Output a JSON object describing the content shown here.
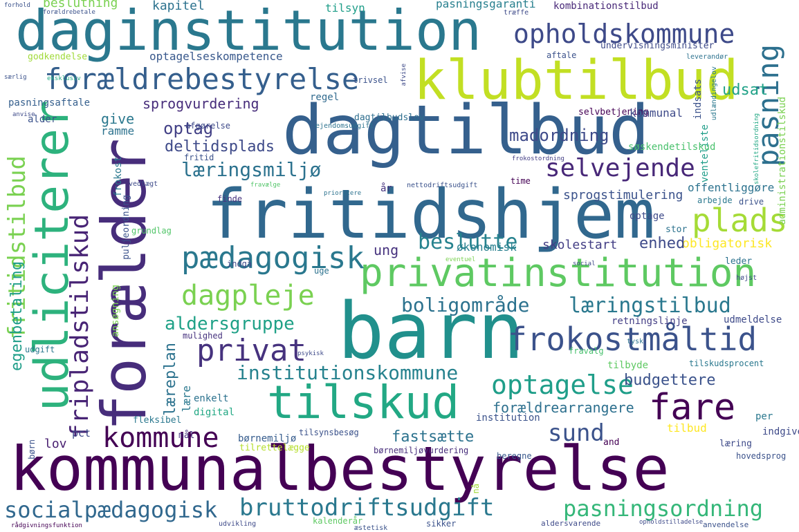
{
  "words": [
    {
      "text": "kommunalbestyrelse",
      "color": "#440154"
    },
    {
      "text": "barn",
      "color": "#21908c"
    },
    {
      "text": "daginstitution",
      "color": "#2a788e"
    },
    {
      "text": "dagtilbud",
      "color": "#35608d"
    },
    {
      "text": "fritidshjem",
      "color": "#31688e"
    },
    {
      "text": "forælder",
      "color": "#472d7b"
    },
    {
      "text": "udliciterer",
      "color": "#2db27d"
    },
    {
      "text": "klubtilbud",
      "color": "#c2df23"
    },
    {
      "text": "tilskud",
      "color": "#22a884"
    },
    {
      "text": "privatinstitution",
      "color": "#5ec962"
    },
    {
      "text": "frokostmåltid",
      "color": "#3b528b"
    },
    {
      "text": "forældrebestyrelse",
      "color": "#355f8d"
    },
    {
      "text": "opholdskommune",
      "color": "#3e4a89"
    },
    {
      "text": "socialpædagogisk",
      "color": "#31688e"
    },
    {
      "text": "bruttodriftsudgift",
      "color": "#2a788e"
    },
    {
      "text": "pasningsordning",
      "color": "#35b779"
    },
    {
      "text": "fare",
      "color": "#440154"
    },
    {
      "text": "pædagogisk",
      "color": "#2a788e"
    },
    {
      "text": "selvejende",
      "color": "#482878"
    },
    {
      "text": "dagpleje",
      "color": "#7ad151"
    },
    {
      "text": "privat",
      "color": "#46327e"
    },
    {
      "text": "pasning",
      "color": "#2d708e"
    },
    {
      "text": "plads",
      "color": "#a5db36"
    },
    {
      "text": "boligområde",
      "color": "#2c728e"
    },
    {
      "text": "læringstilbud",
      "color": "#2a788e"
    },
    {
      "text": "institutionskommune",
      "color": "#26828e"
    },
    {
      "text": "kommune",
      "color": "#440154"
    },
    {
      "text": "optagelse",
      "color": "#1f9e89"
    },
    {
      "text": "fripladstilskud",
      "color": "#482475"
    },
    {
      "text": "fritidstilbud",
      "color": "#7ad151"
    },
    {
      "text": "egenbetaling",
      "color": "#1f9e89"
    },
    {
      "text": "sund",
      "color": "#3b528b"
    },
    {
      "text": "læringsmiljø",
      "color": "#2c728e"
    },
    {
      "text": "beslutte",
      "color": "#26828e"
    },
    {
      "text": "madordning",
      "color": "#3e4a89"
    },
    {
      "text": "aldersgruppe",
      "color": "#1fa187"
    },
    {
      "text": "sprogvurdering",
      "color": "#472d7b"
    },
    {
      "text": "deltidsplads",
      "color": "#3e4a89"
    },
    {
      "text": "optag",
      "color": "#424086"
    },
    {
      "text": "give",
      "color": "#2a788e"
    },
    {
      "text": "ramme",
      "color": "#2c728e"
    },
    {
      "text": "fastsætte",
      "color": "#2c728e"
    },
    {
      "text": "budgettere",
      "color": "#3b528b"
    },
    {
      "text": "forældrearrangere",
      "color": "#2d708e"
    },
    {
      "text": "obligatorisk",
      "color": "#fde725"
    },
    {
      "text": "enhed",
      "color": "#3e4a89"
    },
    {
      "text": "skolestart",
      "color": "#433e85"
    },
    {
      "text": "ung",
      "color": "#46327e"
    },
    {
      "text": "økonomisk",
      "color": "#277f8e"
    },
    {
      "text": "sprogstimulering",
      "color": "#3b528b"
    },
    {
      "text": "offentliggøre",
      "color": "#2c728e"
    },
    {
      "text": "udsat",
      "color": "#1fa187"
    },
    {
      "text": "kapitel",
      "color": "#2c728e"
    },
    {
      "text": "beslutning",
      "color": "#7ad151"
    },
    {
      "text": "pasningsgaranti",
      "color": "#277f8e"
    },
    {
      "text": "kombinationstilbud",
      "color": "#482878"
    },
    {
      "text": "tilsyn",
      "color": "#1f9e89"
    },
    {
      "text": "optagelseskompetence",
      "color": "#38588c"
    },
    {
      "text": "undervisningsminister",
      "color": "#3e4a89"
    },
    {
      "text": "godkendelse",
      "color": "#a0da39"
    },
    {
      "text": "pasningsaftale",
      "color": "#355f8d"
    },
    {
      "text": "regel",
      "color": "#306a8e"
    },
    {
      "text": "dagtilbudslov",
      "color": "#2e6e8e"
    },
    {
      "text": "selvbetjening",
      "color": "#440154"
    },
    {
      "text": "kommunal",
      "color": "#3e4a89"
    },
    {
      "text": "indsats",
      "color": "#3b528b"
    },
    {
      "text": "venteliste",
      "color": "#1f9e89"
    },
    {
      "text": "søskendetilskud",
      "color": "#4ac16d"
    },
    {
      "text": "administrationstilskud",
      "color": "#7ad151"
    },
    {
      "text": "afgørelse",
      "color": "#3e4a89"
    },
    {
      "text": "fritid",
      "color": "#3b528b"
    },
    {
      "text": "frokost",
      "color": "#2a788e"
    },
    {
      "text": "puljeordning",
      "color": "#3b528b"
    },
    {
      "text": "alder",
      "color": "#3b528b"
    },
    {
      "text": "år",
      "color": "#46327e"
    },
    {
      "text": "lov",
      "color": "#481f70"
    },
    {
      "text": "læreplan",
      "color": "#2c728e"
    },
    {
      "text": "lære",
      "color": "#2a788e"
    },
    {
      "text": "enkelt",
      "color": "#2c728e"
    },
    {
      "text": "digital",
      "color": "#22a884"
    },
    {
      "text": "institution",
      "color": "#3b528b"
    },
    {
      "text": "tilbud",
      "color": "#fde725"
    },
    {
      "text": "per",
      "color": "#2a788e"
    },
    {
      "text": "indgive",
      "color": "#3e4a89"
    },
    {
      "text": "læring",
      "color": "#3e4a89"
    },
    {
      "text": "hovedsprog",
      "color": "#3b528b"
    },
    {
      "text": "børnemiljø",
      "color": "#365c8d"
    },
    {
      "text": "tilsynsbesøg",
      "color": "#3b528b"
    },
    {
      "text": "tilrettelægge",
      "color": "#b5de2b"
    },
    {
      "text": "børnemiljøvurdering",
      "color": "#472d7b"
    },
    {
      "text": "beregne",
      "color": "#38588c"
    },
    {
      "text": "fleksibel",
      "color": "#2a788e"
    },
    {
      "text": "pct",
      "color": "#3e4a89"
    },
    {
      "text": "mål",
      "color": "#46327e"
    },
    {
      "text": "and",
      "color": "#440154"
    },
    {
      "text": "udmeldelse",
      "color": "#3e4a89"
    },
    {
      "text": "tilbyde",
      "color": "#5ec962"
    },
    {
      "text": "fravalg",
      "color": "#48c16e"
    },
    {
      "text": "tilskudsprocent",
      "color": "#2a788e"
    },
    {
      "text": "retningslinje",
      "color": "#433e85"
    },
    {
      "text": "leder",
      "color": "#2c728e"
    },
    {
      "text": "stor",
      "color": "#2c728e"
    },
    {
      "text": "optage",
      "color": "#3e4a89"
    },
    {
      "text": "arbejde",
      "color": "#2a788e"
    },
    {
      "text": "drive",
      "color": "#3b528b"
    },
    {
      "text": "time",
      "color": "#440154"
    },
    {
      "text": "finde",
      "color": "#46327e"
    },
    {
      "text": "grundlag",
      "color": "#52c569"
    },
    {
      "text": "mulighed",
      "color": "#46327e"
    },
    {
      "text": "ansøgning",
      "color": "#7ad151"
    },
    {
      "text": "udgift",
      "color": "#2a788e"
    },
    {
      "text": "børn",
      "color": "#3b528b"
    },
    {
      "text": "indgå",
      "color": "#3e4a89"
    },
    {
      "text": "uge",
      "color": "#2c728e"
    },
    {
      "text": "nå",
      "color": "#a0da39"
    },
    {
      "text": "kalenderår",
      "color": "#5ec962"
    },
    {
      "text": "sikker",
      "color": "#3b528b"
    },
    {
      "text": "aldersvarende",
      "color": "#3e4a89"
    },
    {
      "text": "anvendelse",
      "color": "#3b528b"
    },
    {
      "text": "udvikling",
      "color": "#3e4a89"
    },
    {
      "text": "æstetisk",
      "color": "#3b528b"
    },
    {
      "text": "rådgivningsfunktion",
      "color": "#440154"
    },
    {
      "text": "opholdstilladelse",
      "color": "#3e4a89"
    },
    {
      "text": "tysk",
      "color": "#2c728e"
    },
    {
      "text": "højst",
      "color": "#3e4a89"
    },
    {
      "text": "ejendomsudgift",
      "color": "#2c728e"
    },
    {
      "text": "trivsel",
      "color": "#3b528b"
    },
    {
      "text": "aftale",
      "color": "#3b528b"
    },
    {
      "text": "leverandør",
      "color": "#2c728e"
    },
    {
      "text": "træffe",
      "color": "#3e4a89"
    },
    {
      "text": "forældrebetale",
      "color": "#3b528b"
    },
    {
      "text": "forhold",
      "color": "#3b528b"
    },
    {
      "text": "eksklusiv",
      "color": "#22a884"
    },
    {
      "text": "særlig",
      "color": "#3b528b"
    },
    {
      "text": "anvise",
      "color": "#3e4a89"
    },
    {
      "text": "vedtægt",
      "color": "#3e4a89"
    },
    {
      "text": "nettodriftsudgift",
      "color": "#3b528b"
    },
    {
      "text": "prioritere",
      "color": "#2c728e"
    },
    {
      "text": "fravælge",
      "color": "#52c569"
    },
    {
      "text": "frokostordning",
      "color": "#433e85"
    },
    {
      "text": "afvise",
      "color": "#3e4a89"
    },
    {
      "text": "udlændingelov",
      "color": "#2a788e"
    },
    {
      "text": "skolefritidsordning",
      "color": "#22a884"
    },
    {
      "text": "psykisk",
      "color": "#3e4a89"
    },
    {
      "text": "social",
      "color": "#3e4a89"
    },
    {
      "text": "eventuel",
      "color": "#7ad151"
    }
  ]
}
